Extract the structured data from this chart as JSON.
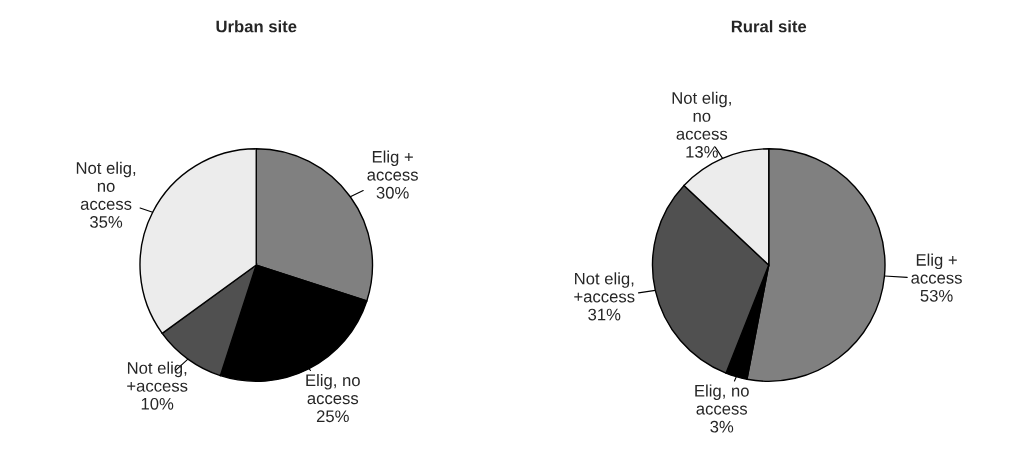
{
  "chart_data": [
    {
      "type": "pie",
      "title": "Urban site",
      "categories": [
        "Elig +\naccess",
        "Elig, no\naccess",
        "Not elig,\n+access",
        "Not elig,\nno\naccess"
      ],
      "values": [
        30,
        25,
        10,
        35
      ],
      "value_labels": [
        "30%",
        "25%",
        "10%",
        "35%"
      ],
      "colors": [
        "#808080",
        "#000000",
        "#505050",
        "#ececec"
      ]
    },
    {
      "type": "pie",
      "title": "Rural site",
      "categories": [
        "Elig +\naccess",
        "Elig, no\naccess",
        "Not elig,\n+access",
        "Not elig,\nno\naccess"
      ],
      "values": [
        53,
        3,
        31,
        13
      ],
      "value_labels": [
        "53%",
        "3%",
        "31%",
        "13%"
      ],
      "colors": [
        "#808080",
        "#000000",
        "#505050",
        "#ececec"
      ]
    }
  ]
}
